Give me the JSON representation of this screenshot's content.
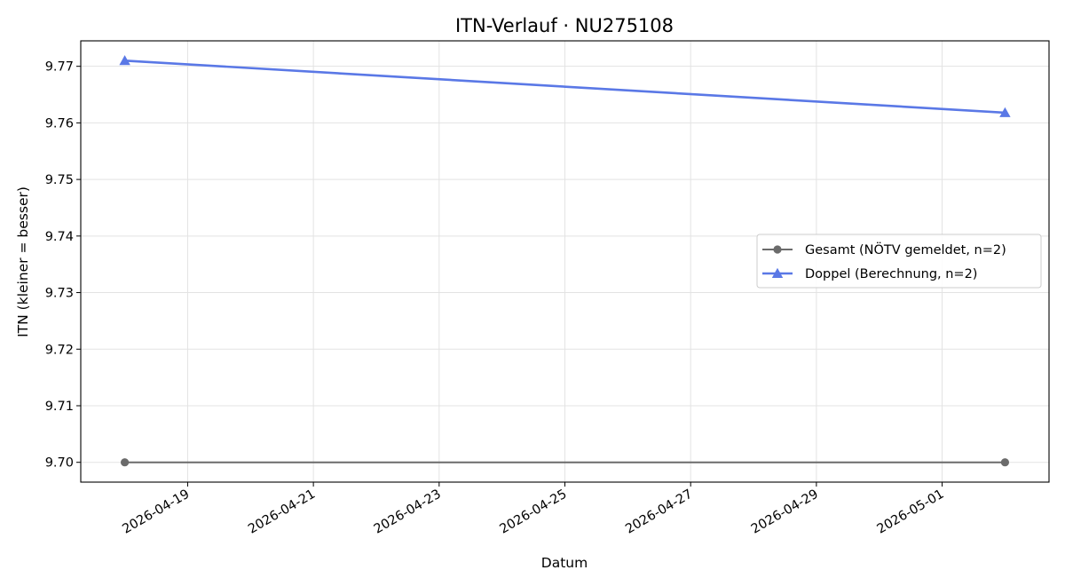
{
  "chart_data": {
    "type": "line",
    "title": "ITN-Verlauf · NU275108",
    "xlabel": "Datum",
    "ylabel": "ITN  (kleiner = besser)",
    "x_ticks": [
      "2026-04-19",
      "2026-04-21",
      "2026-04-23",
      "2026-04-25",
      "2026-04-27",
      "2026-04-29",
      "2026-05-01"
    ],
    "y_ticks": [
      "9.70",
      "9.71",
      "9.72",
      "9.73",
      "9.74",
      "9.75",
      "9.76",
      "9.77"
    ],
    "xlim": [
      "2026-04-17",
      "2026-05-02"
    ],
    "ylim": [
      9.6965,
      9.7745
    ],
    "grid": true,
    "legend_position": "center-right",
    "series": [
      {
        "name": "Gesamt (NÖTV gemeldet, n=2)",
        "color": "#6b6b6b",
        "marker": "circle",
        "points": [
          {
            "x": "2026-04-18",
            "y": 9.7
          },
          {
            "x": "2026-05-02",
            "y": 9.7
          }
        ]
      },
      {
        "name": "Doppel (Berechnung, n=2)",
        "color": "#5a78e6",
        "marker": "triangle",
        "points": [
          {
            "x": "2026-04-18",
            "y": 9.771
          },
          {
            "x": "2026-05-02",
            "y": 9.7618
          }
        ]
      }
    ]
  }
}
